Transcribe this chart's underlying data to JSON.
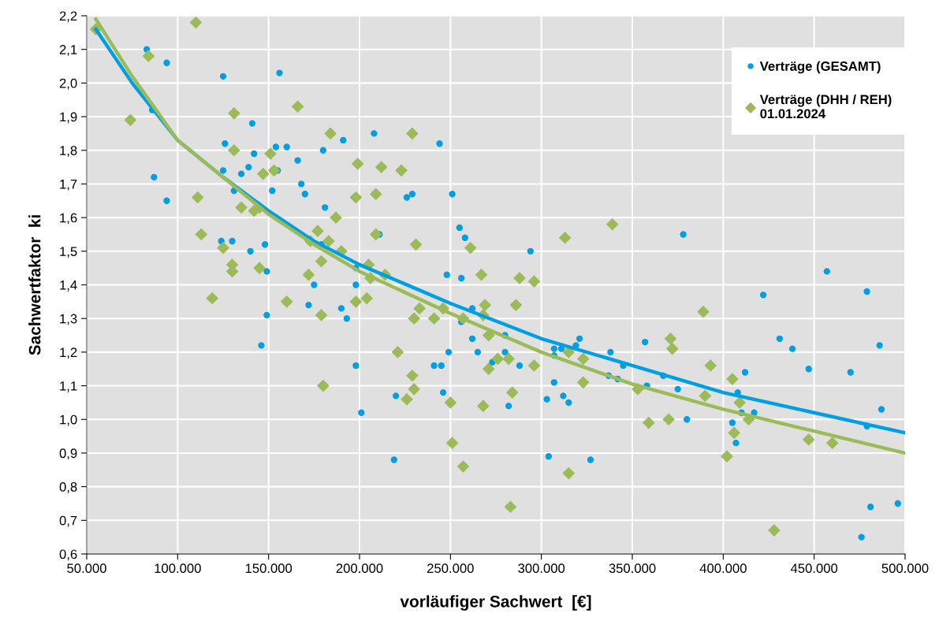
{
  "chart_data": {
    "type": "scatter",
    "xlabel": "vorläufiger Sachwert  [€]",
    "ylabel": "Sachwertfaktor  ki",
    "xlim": [
      50000,
      500000
    ],
    "xticks": [
      {
        "value": 50000,
        "label": "50.000"
      },
      {
        "value": 100000,
        "label": "100.000"
      },
      {
        "value": 150000,
        "label": "150.000"
      },
      {
        "value": 200000,
        "label": "200.000"
      },
      {
        "value": 250000,
        "label": "250.000"
      },
      {
        "value": 300000,
        "label": "300.000"
      },
      {
        "value": 350000,
        "label": "350.000"
      },
      {
        "value": 400000,
        "label": "400.000"
      },
      {
        "value": 450000,
        "label": "450.000"
      },
      {
        "value": 500000,
        "label": "500.000"
      }
    ],
    "ylim": [
      0.6,
      2.2
    ],
    "yticks": [
      {
        "value": 0.6,
        "label": "0,6"
      },
      {
        "value": 0.7,
        "label": "0,7"
      },
      {
        "value": 0.8,
        "label": "0,8"
      },
      {
        "value": 0.9,
        "label": "0,9"
      },
      {
        "value": 1.0,
        "label": "1,0"
      },
      {
        "value": 1.1,
        "label": "1,1"
      },
      {
        "value": 1.2,
        "label": "1,2"
      },
      {
        "value": 1.3,
        "label": "1,3"
      },
      {
        "value": 1.4,
        "label": "1,4"
      },
      {
        "value": 1.5,
        "label": "1,5"
      },
      {
        "value": 1.6,
        "label": "1,6"
      },
      {
        "value": 1.7,
        "label": "1,7"
      },
      {
        "value": 1.8,
        "label": "1,8"
      },
      {
        "value": 1.9,
        "label": "1,9"
      },
      {
        "value": 2.0,
        "label": "2,0"
      },
      {
        "value": 2.1,
        "label": "2,1"
      },
      {
        "value": 2.2,
        "label": "2,2"
      }
    ],
    "grid": true,
    "legend": "top right",
    "series": [
      {
        "name": "Verträge (GESAMT)",
        "marker": "circle",
        "color": "#009fe3",
        "x": [
          83000,
          94000,
          125000,
          156000,
          86000,
          141000,
          126000,
          154000,
          160000,
          180000,
          142000,
          166000,
          125000,
          135000,
          139000,
          155000,
          87000,
          168000,
          170000,
          94000,
          152000,
          131000,
          181000,
          124000,
          130000,
          140000,
          148000,
          149000,
          175000,
          172000,
          149000,
          146000,
          191000,
          208000,
          244000,
          226000,
          229000,
          251000,
          211000,
          255000,
          258000,
          294000,
          179000,
          198000,
          198000,
          248000,
          256000,
          190000,
          193000,
          262000,
          256000,
          262000,
          280000,
          198000,
          249000,
          265000,
          280000,
          241000,
          245000,
          273000,
          288000,
          307000,
          311000,
          319000,
          321000,
          307000,
          338000,
          337000,
          201000,
          220000,
          246000,
          282000,
          303000,
          307000,
          312000,
          315000,
          219000,
          304000,
          327000,
          378000,
          457000,
          479000,
          422000,
          357000,
          431000,
          438000,
          486000,
          345000,
          342000,
          367000,
          358000,
          375000,
          447000,
          470000,
          412000,
          408000,
          380000,
          410000,
          417000,
          405000,
          407000,
          479000,
          487000,
          481000,
          496000,
          476000
        ],
        "values": [
          2.1,
          2.06,
          2.02,
          2.03,
          1.92,
          1.88,
          1.82,
          1.81,
          1.81,
          1.8,
          1.79,
          1.77,
          1.74,
          1.73,
          1.75,
          1.74,
          1.72,
          1.7,
          1.67,
          1.65,
          1.68,
          1.68,
          1.63,
          1.53,
          1.53,
          1.5,
          1.52,
          1.44,
          1.4,
          1.34,
          1.31,
          1.22,
          1.83,
          1.85,
          1.82,
          1.66,
          1.67,
          1.67,
          1.55,
          1.57,
          1.54,
          1.5,
          1.52,
          1.45,
          1.4,
          1.43,
          1.42,
          1.33,
          1.3,
          1.33,
          1.29,
          1.24,
          1.25,
          1.16,
          1.2,
          1.2,
          1.2,
          1.16,
          1.16,
          1.17,
          1.16,
          1.21,
          1.21,
          1.22,
          1.24,
          1.19,
          1.2,
          1.13,
          1.02,
          1.07,
          1.08,
          1.04,
          1.06,
          1.11,
          1.07,
          1.05,
          0.88,
          0.89,
          0.88,
          1.55,
          1.44,
          1.38,
          1.37,
          1.23,
          1.24,
          1.21,
          1.22,
          1.16,
          1.12,
          1.13,
          1.1,
          1.09,
          1.15,
          1.14,
          1.14,
          1.08,
          1.0,
          1.02,
          1.02,
          0.99,
          0.93,
          0.98,
          1.03,
          0.74,
          0.75,
          0.65
        ]
      },
      {
        "name": "Verträge (DHH / REH)\n01.01.2024",
        "marker": "diamond",
        "color": "#9bbb59",
        "x": [
          55000,
          110000,
          84000,
          74000,
          131000,
          166000,
          131000,
          151000,
          147000,
          153000,
          111000,
          113000,
          135000,
          142000,
          145000,
          177000,
          125000,
          130000,
          130000,
          145000,
          172000,
          179000,
          173000,
          119000,
          160000,
          179000,
          180000,
          184000,
          229000,
          199000,
          212000,
          223000,
          198000,
          209000,
          187000,
          209000,
          231000,
          183000,
          190000,
          205000,
          214000,
          206000,
          198000,
          204000,
          233000,
          230000,
          241000,
          246000,
          257000,
          267000,
          269000,
          268000,
          286000,
          288000,
          296000,
          261000,
          313000,
          339000,
          271000,
          221000,
          276000,
          282000,
          271000,
          296000,
          315000,
          323000,
          229000,
          230000,
          226000,
          250000,
          268000,
          284000,
          323000,
          251000,
          257000,
          315000,
          283000,
          389000,
          371000,
          372000,
          393000,
          405000,
          390000,
          409000,
          353000,
          414000,
          359000,
          370000,
          406000,
          402000,
          447000,
          460000,
          428000
        ],
        "values": [
          2.16,
          2.18,
          2.08,
          1.89,
          1.91,
          1.93,
          1.8,
          1.79,
          1.73,
          1.74,
          1.66,
          1.55,
          1.63,
          1.62,
          1.63,
          1.56,
          1.51,
          1.46,
          1.44,
          1.45,
          1.43,
          1.47,
          1.53,
          1.36,
          1.35,
          1.31,
          1.1,
          1.85,
          1.85,
          1.76,
          1.75,
          1.74,
          1.66,
          1.67,
          1.6,
          1.55,
          1.52,
          1.53,
          1.5,
          1.46,
          1.43,
          1.42,
          1.35,
          1.36,
          1.33,
          1.3,
          1.3,
          1.33,
          1.3,
          1.43,
          1.34,
          1.31,
          1.34,
          1.42,
          1.41,
          1.51,
          1.54,
          1.58,
          1.25,
          1.2,
          1.18,
          1.18,
          1.15,
          1.16,
          1.2,
          1.18,
          1.13,
          1.09,
          1.06,
          1.05,
          1.04,
          1.08,
          1.11,
          0.93,
          0.86,
          0.84,
          0.74,
          1.32,
          1.24,
          1.21,
          1.16,
          1.12,
          1.07,
          1.05,
          1.09,
          1.0,
          0.99,
          1.0,
          0.96,
          0.89,
          0.94,
          0.93,
          0.67
        ]
      },
      {
        "type": "line",
        "color": "#009fe3",
        "line_style": "solid",
        "x": [
          55000,
          75000,
          100000,
          125000,
          150000,
          175000,
          200000,
          250000,
          300000,
          350000,
          400000,
          450000,
          500000
        ],
        "values": [
          2.16,
          2.0,
          1.83,
          1.72,
          1.62,
          1.53,
          1.46,
          1.345,
          1.24,
          1.16,
          1.08,
          1.02,
          0.96
        ]
      },
      {
        "type": "line",
        "color": "#9bbb59",
        "line_style": "solid",
        "x": [
          55000,
          75000,
          100000,
          125000,
          150000,
          175000,
          200000,
          250000,
          300000,
          350000,
          400000,
          450000,
          500000
        ],
        "values": [
          2.19,
          2.02,
          1.83,
          1.72,
          1.61,
          1.52,
          1.44,
          1.315,
          1.2,
          1.105,
          1.03,
          0.965,
          0.9
        ]
      }
    ]
  }
}
